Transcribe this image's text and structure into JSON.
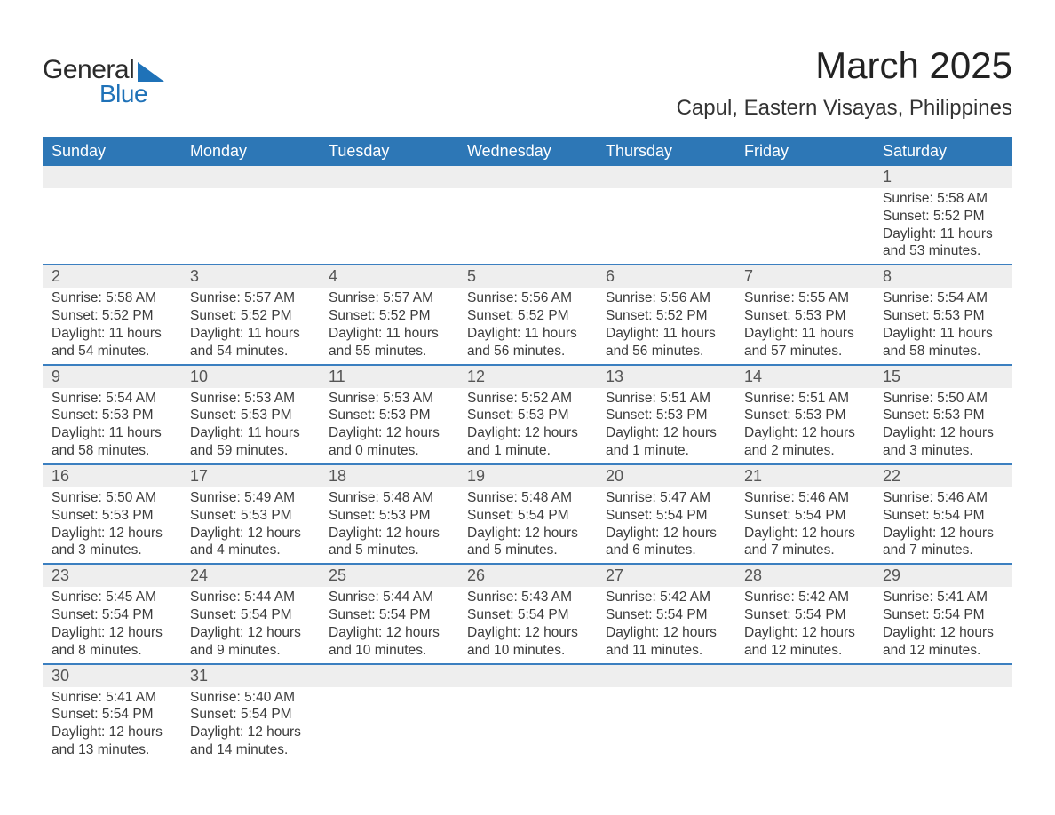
{
  "logo": {
    "general": "General",
    "blue": "Blue"
  },
  "title": "March 2025",
  "location": "Capul, Eastern Visayas, Philippines",
  "colors": {
    "header_bg": "#2d77b6",
    "header_text": "#ffffff",
    "row_separator": "#3b7fc0",
    "daynum_bg": "#eeeeee",
    "text": "#3a3a3a",
    "logo_accent": "#1f72b8"
  },
  "dayNames": [
    "Sunday",
    "Monday",
    "Tuesday",
    "Wednesday",
    "Thursday",
    "Friday",
    "Saturday"
  ],
  "weeks": [
    [
      null,
      null,
      null,
      null,
      null,
      null,
      {
        "n": "1",
        "sr": "5:58 AM",
        "ss": "5:52 PM",
        "dl": "11 hours and 53 minutes."
      }
    ],
    [
      {
        "n": "2",
        "sr": "5:58 AM",
        "ss": "5:52 PM",
        "dl": "11 hours and 54 minutes."
      },
      {
        "n": "3",
        "sr": "5:57 AM",
        "ss": "5:52 PM",
        "dl": "11 hours and 54 minutes."
      },
      {
        "n": "4",
        "sr": "5:57 AM",
        "ss": "5:52 PM",
        "dl": "11 hours and 55 minutes."
      },
      {
        "n": "5",
        "sr": "5:56 AM",
        "ss": "5:52 PM",
        "dl": "11 hours and 56 minutes."
      },
      {
        "n": "6",
        "sr": "5:56 AM",
        "ss": "5:52 PM",
        "dl": "11 hours and 56 minutes."
      },
      {
        "n": "7",
        "sr": "5:55 AM",
        "ss": "5:53 PM",
        "dl": "11 hours and 57 minutes."
      },
      {
        "n": "8",
        "sr": "5:54 AM",
        "ss": "5:53 PM",
        "dl": "11 hours and 58 minutes."
      }
    ],
    [
      {
        "n": "9",
        "sr": "5:54 AM",
        "ss": "5:53 PM",
        "dl": "11 hours and 58 minutes."
      },
      {
        "n": "10",
        "sr": "5:53 AM",
        "ss": "5:53 PM",
        "dl": "11 hours and 59 minutes."
      },
      {
        "n": "11",
        "sr": "5:53 AM",
        "ss": "5:53 PM",
        "dl": "12 hours and 0 minutes."
      },
      {
        "n": "12",
        "sr": "5:52 AM",
        "ss": "5:53 PM",
        "dl": "12 hours and 1 minute."
      },
      {
        "n": "13",
        "sr": "5:51 AM",
        "ss": "5:53 PM",
        "dl": "12 hours and 1 minute."
      },
      {
        "n": "14",
        "sr": "5:51 AM",
        "ss": "5:53 PM",
        "dl": "12 hours and 2 minutes."
      },
      {
        "n": "15",
        "sr": "5:50 AM",
        "ss": "5:53 PM",
        "dl": "12 hours and 3 minutes."
      }
    ],
    [
      {
        "n": "16",
        "sr": "5:50 AM",
        "ss": "5:53 PM",
        "dl": "12 hours and 3 minutes."
      },
      {
        "n": "17",
        "sr": "5:49 AM",
        "ss": "5:53 PM",
        "dl": "12 hours and 4 minutes."
      },
      {
        "n": "18",
        "sr": "5:48 AM",
        "ss": "5:53 PM",
        "dl": "12 hours and 5 minutes."
      },
      {
        "n": "19",
        "sr": "5:48 AM",
        "ss": "5:54 PM",
        "dl": "12 hours and 5 minutes."
      },
      {
        "n": "20",
        "sr": "5:47 AM",
        "ss": "5:54 PM",
        "dl": "12 hours and 6 minutes."
      },
      {
        "n": "21",
        "sr": "5:46 AM",
        "ss": "5:54 PM",
        "dl": "12 hours and 7 minutes."
      },
      {
        "n": "22",
        "sr": "5:46 AM",
        "ss": "5:54 PM",
        "dl": "12 hours and 7 minutes."
      }
    ],
    [
      {
        "n": "23",
        "sr": "5:45 AM",
        "ss": "5:54 PM",
        "dl": "12 hours and 8 minutes."
      },
      {
        "n": "24",
        "sr": "5:44 AM",
        "ss": "5:54 PM",
        "dl": "12 hours and 9 minutes."
      },
      {
        "n": "25",
        "sr": "5:44 AM",
        "ss": "5:54 PM",
        "dl": "12 hours and 10 minutes."
      },
      {
        "n": "26",
        "sr": "5:43 AM",
        "ss": "5:54 PM",
        "dl": "12 hours and 10 minutes."
      },
      {
        "n": "27",
        "sr": "5:42 AM",
        "ss": "5:54 PM",
        "dl": "12 hours and 11 minutes."
      },
      {
        "n": "28",
        "sr": "5:42 AM",
        "ss": "5:54 PM",
        "dl": "12 hours and 12 minutes."
      },
      {
        "n": "29",
        "sr": "5:41 AM",
        "ss": "5:54 PM",
        "dl": "12 hours and 12 minutes."
      }
    ],
    [
      {
        "n": "30",
        "sr": "5:41 AM",
        "ss": "5:54 PM",
        "dl": "12 hours and 13 minutes."
      },
      {
        "n": "31",
        "sr": "5:40 AM",
        "ss": "5:54 PM",
        "dl": "12 hours and 14 minutes."
      },
      null,
      null,
      null,
      null,
      null
    ]
  ],
  "labels": {
    "sunrise": "Sunrise: ",
    "sunset": "Sunset: ",
    "daylight": "Daylight: "
  }
}
